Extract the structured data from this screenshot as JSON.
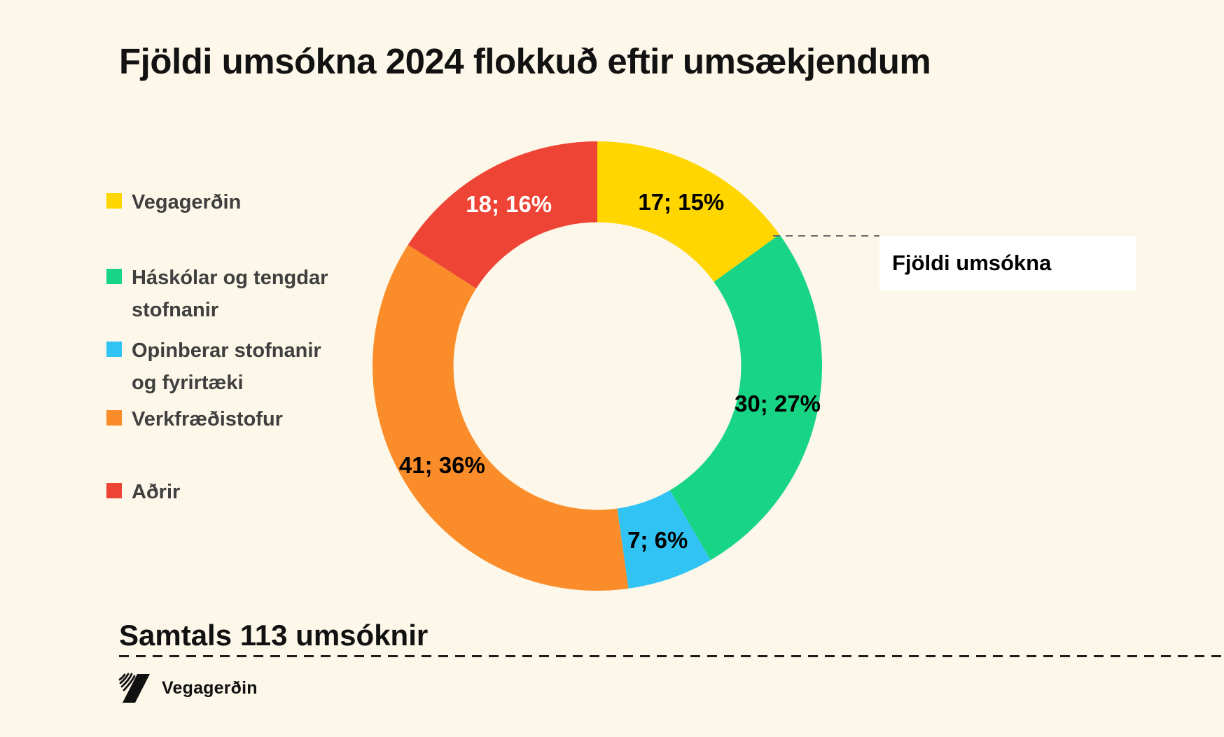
{
  "page": {
    "title": "Fjöldi umsókna 2024 flokkuð eftir umsækjendum",
    "background_color": "#FCF7E8"
  },
  "chart_data": {
    "type": "pie",
    "subtype": "donut",
    "title": "Fjöldi umsókna 2024 flokkuð eftir umsækjendum",
    "series_name": "Fjöldi umsókna",
    "total": 113,
    "inner_radius_ratio": 0.64,
    "start_angle_deg": 0,
    "direction": "clockwise",
    "legend_position": "left",
    "slices": [
      {
        "category": "Vegagerðin",
        "value": 17,
        "percent": 15,
        "label": "17; 15%",
        "color": "#FFD600",
        "label_color": "#000000"
      },
      {
        "category": "Háskólar og tengdar stofnanir",
        "value": 30,
        "percent": 27,
        "label": "30; 27%",
        "color": "#17D584",
        "label_color": "#000000"
      },
      {
        "category": "Opinberar stofnanir og fyrirtæki",
        "value": 7,
        "percent": 6,
        "label": "7; 6%",
        "color": "#31C3F3",
        "label_color": "#000000"
      },
      {
        "category": "Verkfræðistofur",
        "value": 41,
        "percent": 36,
        "label": "41; 36%",
        "color": "#FA8D29",
        "label_color": "#000000"
      },
      {
        "category": "Aðrir",
        "value": 18,
        "percent": 16,
        "label": "18; 16%",
        "color": "#EE4435",
        "label_color": "#FFFFFF"
      }
    ]
  },
  "legend": {
    "items": [
      {
        "label": "Vegagerðin",
        "color": "#FFD600"
      },
      {
        "label": "Háskólar og tengdar stofnanir",
        "color": "#17D584"
      },
      {
        "label": "Opinberar stofnanir og fyrirtæki",
        "color": "#31C3F3"
      },
      {
        "label": "Verkfræðistofur",
        "color": "#FA8D29"
      },
      {
        "label": "Aðrir",
        "color": "#EE4435"
      }
    ]
  },
  "callout": {
    "label": "Fjöldi umsókna"
  },
  "footer": {
    "total_label": "Samtals 113 umsóknir",
    "brand_name": "Vegagerðin"
  }
}
